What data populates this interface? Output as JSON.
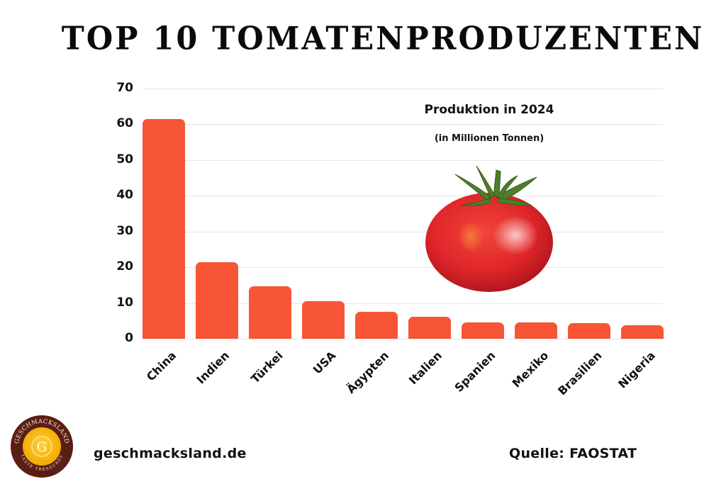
{
  "header": {
    "title": "TOP 10 TOMATENPRODUZENTEN"
  },
  "inset": {
    "title": "Produktion in 2024",
    "subtitle": "(in Millionen Tonnen)",
    "image": "tomato-illustration"
  },
  "footer": {
    "logo_text_top": "GESCHMACKSLAND",
    "logo_letter": "G",
    "logo_text_bottom": "TASTE TREASURES",
    "website": "geschmacksland.de",
    "source": "Quelle: FAOSTAT"
  },
  "colors": {
    "bar": "#f75535",
    "grid": "#e6e6e6",
    "text": "#111111",
    "logo_brown": "#5a1e14",
    "logo_gold": "#f5b800"
  },
  "chart_data": {
    "type": "bar",
    "title": "TOP 10 TOMATENPRODUZENTEN",
    "subtitle": "Produktion in 2024 (in Millionen Tonnen)",
    "xlabel": "",
    "ylabel": "Millionen Tonnen",
    "ylim": [
      0,
      70
    ],
    "yticks": [
      0,
      10,
      20,
      30,
      40,
      50,
      60,
      70
    ],
    "grid": true,
    "legend": null,
    "categories": [
      "China",
      "Indien",
      "Türkei",
      "USA",
      "Ägypten",
      "Italien",
      "Spanien",
      "Mexiko",
      "Brasilien",
      "Nigeria"
    ],
    "values": [
      61.5,
      21.5,
      14.7,
      10.6,
      7.5,
      6.1,
      4.6,
      4.5,
      4.4,
      3.8
    ],
    "source": "FAOSTAT"
  }
}
